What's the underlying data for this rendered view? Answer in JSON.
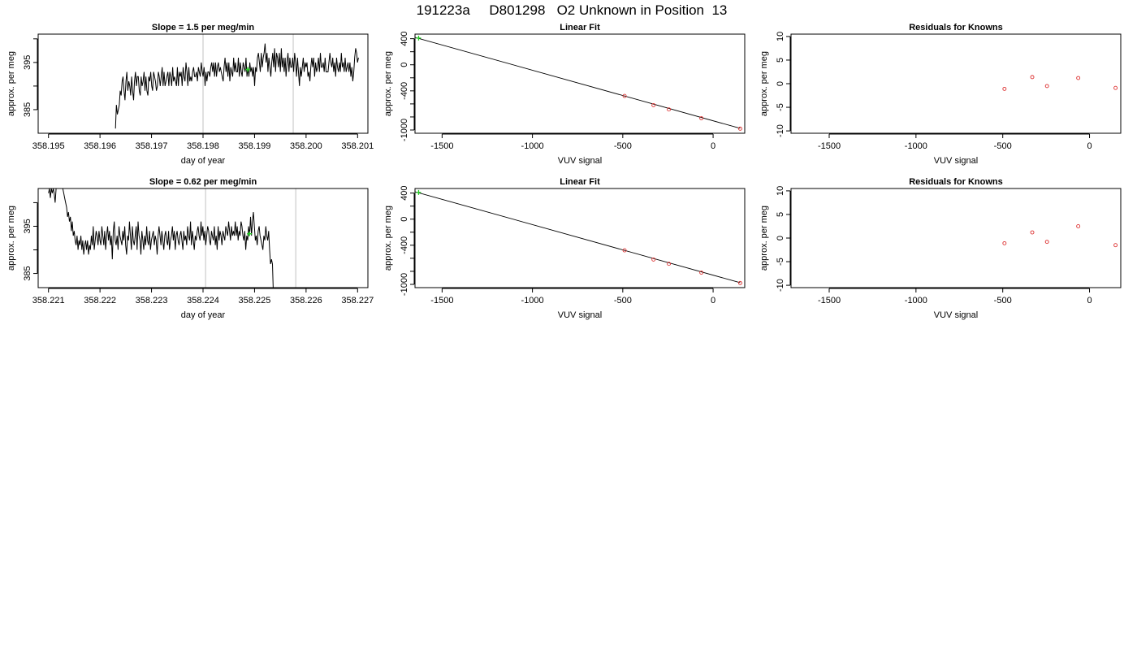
{
  "page_title": "191223a     D801298   O2 Unknown in Position  13",
  "chart_data": [
    {
      "type": "line",
      "title": "Slope =  1.5  per meg/min",
      "xlabel": "day of year",
      "ylabel": "approx. per meg",
      "xlim": [
        358.1948,
        358.2012
      ],
      "ylim": [
        380,
        401
      ],
      "xticks": [
        358.195,
        358.196,
        358.197,
        358.198,
        358.199,
        358.2,
        358.201
      ],
      "xtick_labels": [
        "358.195",
        "358.196",
        "358.197",
        "358.198",
        "358.199",
        "358.200",
        "358.201"
      ],
      "yticks": [
        385,
        390,
        395,
        400
      ],
      "ytick_labels": [
        "385",
        "",
        "395",
        ""
      ],
      "vlines": [
        358.198,
        358.19975
      ],
      "series": [
        {
          "x_start": 358.1963,
          "x_step": 1.85e-05,
          "values": [
            381,
            386,
            384,
            385,
            386,
            389,
            388,
            391,
            392,
            389,
            387,
            391,
            393,
            389,
            391,
            390,
            388,
            392,
            389,
            387,
            391,
            393,
            390,
            392,
            392,
            389,
            388,
            392,
            390,
            391,
            393,
            389,
            392,
            389,
            388,
            392,
            391,
            393,
            390,
            389,
            393,
            392,
            391,
            389,
            390,
            393,
            392,
            390,
            392,
            394,
            390,
            393,
            390,
            391,
            392,
            393,
            390,
            393,
            392,
            390,
            394,
            391,
            392,
            391,
            390,
            394,
            390,
            393,
            392,
            393,
            390,
            394,
            392,
            391,
            395,
            393,
            390,
            394,
            391,
            392,
            391,
            393,
            394,
            392,
            392,
            393,
            391,
            394,
            393,
            392,
            395,
            393,
            392,
            394,
            390,
            393,
            391,
            393,
            393,
            392,
            394,
            395,
            393,
            395,
            392,
            395,
            392,
            394,
            395,
            393,
            394,
            393,
            392,
            391,
            394,
            396,
            393,
            395,
            392,
            395,
            391,
            394,
            393,
            392,
            396,
            393,
            395,
            393,
            393,
            396,
            392,
            395,
            393,
            392,
            395,
            394,
            393,
            396,
            392,
            394,
            392,
            395,
            393,
            394,
            392,
            394,
            390,
            394,
            393,
            396,
            397,
            395,
            393,
            397,
            394,
            396,
            397,
            399,
            395,
            397,
            393,
            396,
            394,
            392,
            395,
            397,
            394,
            398,
            393,
            397,
            396,
            394,
            397,
            393,
            398,
            394,
            396,
            393,
            396,
            392,
            395,
            397,
            393,
            396,
            394,
            394,
            396,
            393,
            397,
            395,
            392,
            396,
            393,
            390,
            394,
            392,
            394,
            396,
            393,
            395,
            394,
            395,
            392,
            393,
            391,
            394,
            396,
            394,
            396,
            392,
            395,
            393,
            394,
            396,
            393,
            397,
            394,
            394,
            395,
            393,
            396,
            393,
            393,
            393,
            395,
            397,
            395,
            394,
            396,
            393,
            395,
            392,
            396,
            394,
            393,
            395,
            393,
            397,
            394,
            395,
            393,
            396,
            393,
            394,
            395,
            393,
            395,
            392,
            394,
            391,
            393,
            396,
            398,
            397,
            395,
            396
          ]
        }
      ],
      "highlight_points": [
        {
          "x": 358.19887,
          "y": 393.5
        }
      ]
    },
    {
      "type": "scatter",
      "title": "Linear Fit",
      "xlabel": "VUV signal",
      "ylabel": "approx. per meg",
      "xlim": [
        -1650,
        175
      ],
      "ylim": [
        -1050,
        470
      ],
      "xticks": [
        -1500,
        -1000,
        -500,
        0
      ],
      "xtick_labels": [
        "-1500",
        "-1000",
        "-500",
        "0"
      ],
      "yticks": [
        -1000,
        -800,
        -600,
        -400,
        -200,
        0,
        200,
        400
      ],
      "ytick_labels": [
        "-1000",
        "",
        "",
        "-400",
        "",
        "0",
        "",
        "400"
      ],
      "fit_line": {
        "x": [
          -1650,
          150
        ],
        "y": [
          420,
          -975
        ]
      },
      "series": [
        {
          "name": "knowns",
          "color": "#dd3333",
          "marker": "circle",
          "x": [
            -490,
            -330,
            -245,
            -65,
            150
          ],
          "y": [
            -478,
            -619,
            -685,
            -820,
            -980
          ]
        },
        {
          "name": "unknown",
          "color": "#22cc22",
          "marker": "plus",
          "x": [
            -1630
          ],
          "y": [
            409
          ]
        }
      ]
    },
    {
      "type": "scatter",
      "title": "Residuals for Knowns",
      "xlabel": "VUV signal",
      "ylabel": "approx. per meg",
      "xlim": [
        -1720,
        180
      ],
      "ylim": [
        -10.5,
        10.5
      ],
      "xticks": [
        -1500,
        -1000,
        -500,
        0
      ],
      "xtick_labels": [
        "-1500",
        "-1000",
        "-500",
        "0"
      ],
      "yticks": [
        -10,
        -5,
        0,
        5,
        10
      ],
      "ytick_labels": [
        "-10",
        "-5",
        "0",
        "5",
        "10"
      ],
      "series": [
        {
          "name": "knowns",
          "color": "#dd3333",
          "marker": "circle",
          "x": [
            -490,
            -330,
            -245,
            -65,
            150
          ],
          "y": [
            -1.1,
            1.4,
            -0.5,
            1.2,
            -0.9
          ]
        }
      ]
    },
    {
      "type": "line",
      "title": "Slope =  0.62  per meg/min",
      "xlabel": "day of year",
      "ylabel": "approx. per meg",
      "xlim": [
        358.2208,
        358.2272
      ],
      "ylim": [
        382,
        403
      ],
      "xticks": [
        358.221,
        358.222,
        358.223,
        358.224,
        358.225,
        358.226,
        358.227
      ],
      "xtick_labels": [
        "358.221",
        "358.222",
        "358.223",
        "358.224",
        "358.225",
        "358.226",
        "358.227"
      ],
      "yticks": [
        385,
        390,
        395,
        400
      ],
      "ytick_labels": [
        "385",
        "",
        "395",
        ""
      ],
      "vlines": [
        358.22405,
        358.2258
      ],
      "series": [
        {
          "x_start": 358.221,
          "x_step": 1.85e-05,
          "values": [
            402,
            403,
            401,
            403,
            402,
            403,
            402,
            400,
            403,
            404,
            405,
            405,
            406,
            405,
            404,
            403,
            402,
            401,
            400,
            399,
            397,
            398,
            396,
            397,
            394,
            396,
            393,
            394,
            392,
            391,
            393,
            390,
            392,
            391,
            393,
            390,
            392,
            389,
            391,
            392,
            390,
            392,
            389,
            391,
            390,
            393,
            391,
            395,
            390,
            392,
            394,
            393,
            391,
            394,
            392,
            391,
            395,
            393,
            391,
            394,
            390,
            393,
            395,
            392,
            394,
            391,
            393,
            388,
            394,
            396,
            392,
            391,
            393,
            390,
            395,
            393,
            392,
            391,
            394,
            392,
            395,
            391,
            389,
            393,
            392,
            396,
            393,
            390,
            395,
            392,
            391,
            393,
            395,
            390,
            396,
            393,
            392,
            389,
            394,
            392,
            390,
            393,
            391,
            395,
            392,
            391,
            394,
            390,
            392,
            393,
            394,
            391,
            393,
            392,
            389,
            393,
            395,
            393,
            391,
            394,
            392,
            390,
            393,
            394,
            392,
            391,
            394,
            390,
            392,
            393,
            395,
            392,
            394,
            390,
            393,
            394,
            392,
            391,
            393,
            394,
            392,
            390,
            394,
            392,
            393,
            391,
            395,
            393,
            392,
            396,
            391,
            394,
            392,
            390,
            393,
            392,
            394,
            395,
            393,
            392,
            396,
            393,
            395,
            392,
            394,
            391,
            393,
            395,
            394,
            392,
            391,
            394,
            393,
            392,
            395,
            391,
            393,
            390,
            395,
            392,
            394,
            393,
            391,
            394,
            393,
            392,
            395,
            394,
            393,
            396,
            394,
            392,
            395,
            393,
            394,
            393,
            396,
            393,
            395,
            392,
            394,
            393,
            396,
            395,
            393,
            392,
            394,
            390,
            393,
            392,
            395,
            393,
            397,
            393,
            396,
            398,
            395,
            392,
            393,
            391,
            394,
            395,
            393,
            392,
            391,
            390,
            393,
            392,
            395,
            393,
            392,
            394,
            390,
            387,
            388,
            387,
            380
          ]
        }
      ],
      "highlight_points": [
        {
          "x": 358.2249,
          "y": 393.4
        }
      ]
    },
    {
      "type": "scatter",
      "title": "Linear Fit",
      "xlabel": "VUV signal",
      "ylabel": "approx. per meg",
      "xlim": [
        -1650,
        175
      ],
      "ylim": [
        -1050,
        470
      ],
      "xticks": [
        -1500,
        -1000,
        -500,
        0
      ],
      "xtick_labels": [
        "-1500",
        "-1000",
        "-500",
        "0"
      ],
      "yticks": [
        -1000,
        -800,
        -600,
        -400,
        -200,
        0,
        200,
        400
      ],
      "ytick_labels": [
        "-1000",
        "",
        "",
        "-400",
        "",
        "0",
        "",
        "400"
      ],
      "fit_line": {
        "x": [
          -1650,
          150
        ],
        "y": [
          420,
          -975
        ]
      },
      "series": [
        {
          "name": "knowns",
          "color": "#dd3333",
          "marker": "circle",
          "x": [
            -490,
            -330,
            -245,
            -65,
            150
          ],
          "y": [
            -478,
            -619,
            -685,
            -820,
            -980
          ]
        },
        {
          "name": "unknown",
          "color": "#22cc22",
          "marker": "plus",
          "x": [
            -1630
          ],
          "y": [
            409
          ]
        }
      ]
    },
    {
      "type": "scatter",
      "title": "Residuals for Knowns",
      "xlabel": "VUV signal",
      "ylabel": "approx. per meg",
      "xlim": [
        -1720,
        180
      ],
      "ylim": [
        -10.5,
        10.5
      ],
      "xticks": [
        -1500,
        -1000,
        -500,
        0
      ],
      "xtick_labels": [
        "-1500",
        "-1000",
        "-500",
        "0"
      ],
      "yticks": [
        -10,
        -5,
        0,
        5,
        10
      ],
      "ytick_labels": [
        "-10",
        "-5",
        "0",
        "5",
        "10"
      ],
      "series": [
        {
          "name": "knowns",
          "color": "#dd3333",
          "marker": "circle",
          "x": [
            -490,
            -330,
            -245,
            -65,
            150
          ],
          "y": [
            -1.1,
            1.2,
            -0.8,
            2.5,
            -1.5
          ]
        }
      ]
    }
  ]
}
